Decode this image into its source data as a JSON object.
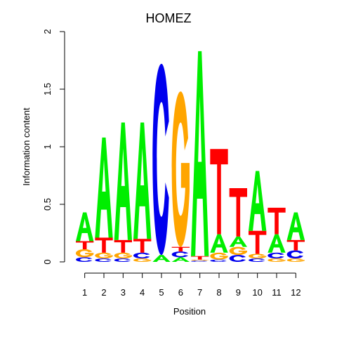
{
  "chart_data": {
    "type": "sequence-logo",
    "title": "HOMEZ",
    "xlabel": "Position",
    "ylabel": "Information content",
    "ylim": [
      0,
      2
    ],
    "yticks": [
      "0",
      "0.5",
      "1",
      "1.5",
      "2"
    ],
    "xticks": [
      "1",
      "2",
      "3",
      "4",
      "5",
      "6",
      "7",
      "8",
      "9",
      "10",
      "11",
      "12"
    ],
    "colors": {
      "A": "#00ee00",
      "C": "#0000ee",
      "G": "#ffa500",
      "T": "#ff0000"
    },
    "positions": [
      {
        "position": "1",
        "letters": [
          [
            "C",
            0.04
          ],
          [
            "G",
            0.07
          ],
          [
            "T",
            0.07
          ],
          [
            "A",
            0.25
          ]
        ]
      },
      {
        "position": "2",
        "letters": [
          [
            "C",
            0.03
          ],
          [
            "G",
            0.05
          ],
          [
            "T",
            0.13
          ],
          [
            "A",
            0.87
          ]
        ]
      },
      {
        "position": "3",
        "letters": [
          [
            "C",
            0.03
          ],
          [
            "G",
            0.05
          ],
          [
            "T",
            0.11
          ],
          [
            "A",
            1.02
          ]
        ]
      },
      {
        "position": "4",
        "letters": [
          [
            "G",
            0.03
          ],
          [
            "C",
            0.05
          ],
          [
            "T",
            0.12
          ],
          [
            "A",
            1.01
          ]
        ]
      },
      {
        "position": "5",
        "letters": [
          [
            "A",
            0.06
          ],
          [
            "C",
            1.66
          ]
        ]
      },
      {
        "position": "6",
        "letters": [
          [
            "A",
            0.04
          ],
          [
            "C",
            0.05
          ],
          [
            "T",
            0.04
          ],
          [
            "G",
            1.35
          ]
        ]
      },
      {
        "position": "7",
        "letters": [
          [
            "C",
            0.01
          ],
          [
            "G",
            0.01
          ],
          [
            "T",
            0.03
          ],
          [
            "A",
            1.78
          ]
        ]
      },
      {
        "position": "8",
        "letters": [
          [
            "C",
            0.02
          ],
          [
            "G",
            0.06
          ],
          [
            "A",
            0.16
          ],
          [
            "T",
            0.74
          ]
        ]
      },
      {
        "position": "9",
        "letters": [
          [
            "C",
            0.06
          ],
          [
            "G",
            0.07
          ],
          [
            "A",
            0.09
          ],
          [
            "T",
            0.42
          ]
        ]
      },
      {
        "position": "10",
        "letters": [
          [
            "C",
            0.03
          ],
          [
            "G",
            0.04
          ],
          [
            "T",
            0.2
          ],
          [
            "A",
            0.52
          ]
        ]
      },
      {
        "position": "11",
        "letters": [
          [
            "G",
            0.03
          ],
          [
            "C",
            0.05
          ],
          [
            "A",
            0.16
          ],
          [
            "T",
            0.23
          ]
        ]
      },
      {
        "position": "12",
        "letters": [
          [
            "G",
            0.03
          ],
          [
            "C",
            0.07
          ],
          [
            "T",
            0.09
          ],
          [
            "A",
            0.24
          ]
        ]
      }
    ]
  }
}
